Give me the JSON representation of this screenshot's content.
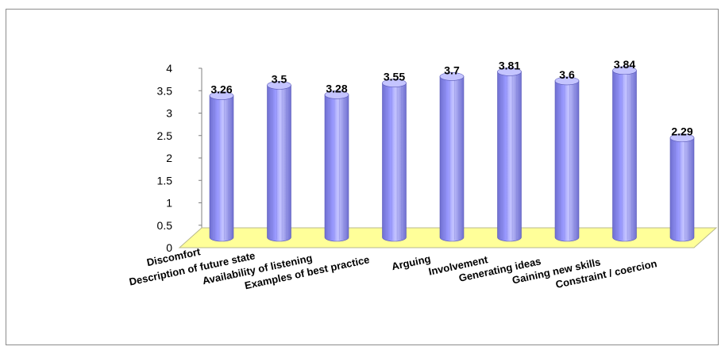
{
  "chart_data": {
    "type": "bar",
    "title": "",
    "xlabel": "",
    "ylabel": "",
    "categories": [
      "Discomfort",
      "Description of future state",
      "Availability of listening",
      "Examples of best practice",
      "Arguing",
      "Involvement",
      "Generating ideas",
      "Gaining new skills",
      "Constraint / coercion"
    ],
    "values": [
      3.26,
      3.5,
      3.28,
      3.55,
      3.7,
      3.81,
      3.6,
      3.84,
      2.29
    ],
    "data_labels": [
      "3.26",
      "3.5",
      "3.28",
      "3.55",
      "3.7",
      "3.81",
      "3.6",
      "3.84",
      "2.29"
    ],
    "y_ticks": [
      "0",
      "0.5",
      "1",
      "1.5",
      "2",
      "2.5",
      "3",
      "3.5",
      "4"
    ],
    "ylim": [
      0,
      4
    ],
    "legend": "none",
    "grid": false,
    "style": "3d-cylinder",
    "colors": {
      "bar": "#9999ff",
      "bar_dark": "#6f6fd0",
      "bar_light": "#c4c4ff",
      "floor": "#ffff99",
      "floor_edge": "#c8c88a"
    }
  }
}
